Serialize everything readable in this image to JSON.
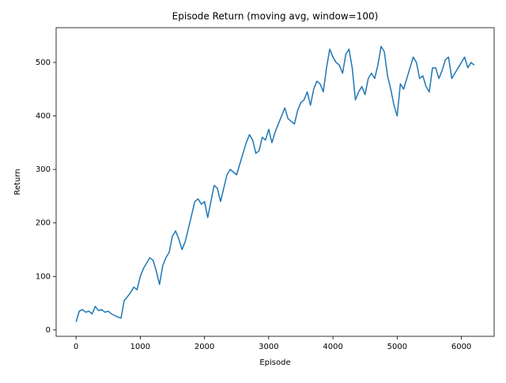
{
  "chart_data": {
    "type": "line",
    "title": "Episode Return (moving avg, window=100)",
    "x_label": "Episode",
    "y_label": "Return",
    "x": [
      0,
      50,
      100,
      150,
      200,
      250,
      300,
      350,
      400,
      450,
      500,
      550,
      600,
      650,
      700,
      750,
      800,
      850,
      900,
      950,
      1000,
      1050,
      1100,
      1150,
      1200,
      1250,
      1300,
      1350,
      1400,
      1450,
      1500,
      1550,
      1600,
      1650,
      1700,
      1750,
      1800,
      1850,
      1900,
      1950,
      2000,
      2050,
      2100,
      2150,
      2200,
      2250,
      2300,
      2350,
      2400,
      2450,
      2500,
      2550,
      2600,
      2650,
      2700,
      2750,
      2800,
      2850,
      2900,
      2950,
      3000,
      3050,
      3100,
      3150,
      3200,
      3250,
      3300,
      3350,
      3400,
      3450,
      3500,
      3550,
      3600,
      3650,
      3700,
      3750,
      3800,
      3850,
      3900,
      3950,
      4000,
      4050,
      4100,
      4150,
      4200,
      4250,
      4300,
      4350,
      4400,
      4450,
      4500,
      4550,
      4600,
      4650,
      4700,
      4750,
      4800,
      4850,
      4900,
      4950,
      5000,
      5050,
      5100,
      5150,
      5200,
      5250,
      5300,
      5350,
      5400,
      5450,
      5500,
      5550,
      5600,
      5650,
      5700,
      5750,
      5800,
      5850,
      5900,
      5950,
      6000,
      6050,
      6100,
      6150,
      6200
    ],
    "values": [
      15,
      35,
      38,
      33,
      35,
      30,
      44,
      36,
      38,
      33,
      35,
      30,
      27,
      24,
      22,
      55,
      62,
      70,
      80,
      75,
      100,
      115,
      125,
      135,
      130,
      110,
      85,
      120,
      135,
      145,
      175,
      185,
      170,
      150,
      165,
      190,
      215,
      240,
      245,
      235,
      240,
      210,
      240,
      270,
      265,
      240,
      265,
      290,
      300,
      295,
      290,
      310,
      330,
      350,
      365,
      355,
      330,
      335,
      360,
      355,
      375,
      350,
      370,
      385,
      400,
      415,
      395,
      390,
      385,
      410,
      425,
      430,
      445,
      420,
      450,
      465,
      460,
      445,
      490,
      525,
      510,
      500,
      495,
      480,
      515,
      525,
      490,
      430,
      445,
      455,
      440,
      470,
      480,
      470,
      495,
      530,
      520,
      475,
      450,
      420,
      400,
      460,
      450,
      470,
      490,
      510,
      500,
      470,
      475,
      455,
      445,
      490,
      490,
      470,
      485,
      505,
      510,
      470,
      480,
      490,
      500,
      510,
      490,
      500,
      495
    ],
    "color": "#1f77b4",
    "xlim": [
      -310,
      6510
    ],
    "xticks": [
      0,
      1000,
      2000,
      3000,
      4000,
      5000,
      6000
    ],
    "ylim": [
      -12,
      565
    ],
    "yticks": [
      0,
      100,
      200,
      300,
      400,
      500
    ]
  }
}
